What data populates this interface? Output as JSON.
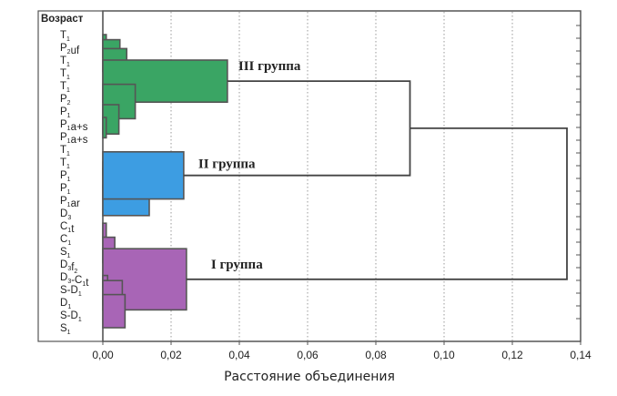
{
  "chart_data": {
    "type": "dendrogram",
    "xlabel": "Расстояние объединения",
    "xlim": [
      0,
      0.14
    ],
    "xticks": [
      "0,00",
      "0,02",
      "0,04",
      "0,06",
      "0,08",
      "0,10",
      "0,12",
      "0,14"
    ],
    "grid": "vertical dotted",
    "leaf_header": "Возраст",
    "leaves": [
      {
        "base": "T",
        "sub": "1",
        "rest": ""
      },
      {
        "base": "P",
        "sub": "2",
        "rest": "uf"
      },
      {
        "base": "T",
        "sub": "1",
        "rest": ""
      },
      {
        "base": "T",
        "sub": "1",
        "rest": ""
      },
      {
        "base": "T",
        "sub": "1",
        "rest": ""
      },
      {
        "base": "P",
        "sub": "2",
        "rest": ""
      },
      {
        "base": "P",
        "sub": "1",
        "rest": ""
      },
      {
        "base": "P",
        "sub": "1",
        "rest": "a+s"
      },
      {
        "base": "P",
        "sub": "1",
        "rest": "a+s"
      },
      {
        "base": "T",
        "sub": "1",
        "rest": ""
      },
      {
        "base": "T",
        "sub": "1",
        "rest": ""
      },
      {
        "base": "P",
        "sub": "1",
        "rest": ""
      },
      {
        "base": "P",
        "sub": "1",
        "rest": ""
      },
      {
        "base": "P",
        "sub": "1",
        "rest": "ar"
      },
      {
        "base": "D",
        "sub": "3",
        "rest": ""
      },
      {
        "base": "C",
        "sub": "1",
        "rest": "t"
      },
      {
        "base": "C",
        "sub": "1",
        "rest": ""
      },
      {
        "base": "S",
        "sub": "1",
        "rest": ""
      },
      {
        "base": "D",
        "sub": "3",
        "rest": "f",
        "sub2": "2"
      },
      {
        "base": "D",
        "sub": "3",
        "rest": "-C",
        "sub2": "1",
        "rest2": "t"
      },
      {
        "base": "S-D",
        "sub": "1",
        "rest": ""
      },
      {
        "base": "D",
        "sub": "1",
        "rest": ""
      },
      {
        "base": "S-D",
        "sub": "1",
        "rest": ""
      },
      {
        "base": "S",
        "sub": "1",
        "rest": ""
      }
    ],
    "groups": [
      {
        "name": "III группа",
        "color": "#3aa564",
        "distance": 0.0365,
        "merges": [
          [
            0,
            1,
            0.001
          ],
          [
            0.4,
            1.8,
            0.005
          ],
          [
            1.1,
            2.9,
            0.007
          ],
          [
            2.0,
            5.3,
            0.0365
          ],
          [
            3.9,
            6.6,
            0.0095
          ],
          [
            5.5,
            7.8,
            0.0047
          ],
          [
            6.5,
            8.1,
            0.001
          ]
        ]
      },
      {
        "name": "II группа",
        "color": "#3d9de2",
        "distance": 0.0237,
        "merges": [
          [
            10,
            11,
            0.002
          ],
          [
            10.5,
            12,
            0.003
          ],
          [
            11.8,
            14.2,
            0.0136
          ],
          [
            9.2,
            12.9,
            0.0237
          ]
        ]
      },
      {
        "name": "I группа",
        "color": "#a865b6",
        "distance": 0.0245,
        "merges": [
          [
            14.8,
            15.9,
            0.001
          ],
          [
            15.9,
            17.9,
            0.0035
          ],
          [
            16.8,
            21.6,
            0.0245
          ],
          [
            18.9,
            19.8,
            0.0014
          ],
          [
            19.3,
            21.2,
            0.0057
          ],
          [
            20.4,
            23,
            0.0065
          ]
        ]
      }
    ],
    "joins": [
      {
        "between": [
          "III группа",
          "II группа"
        ],
        "distance": 0.09
      },
      {
        "between": [
          "III+II",
          "I группа"
        ],
        "distance": 0.136
      }
    ]
  }
}
